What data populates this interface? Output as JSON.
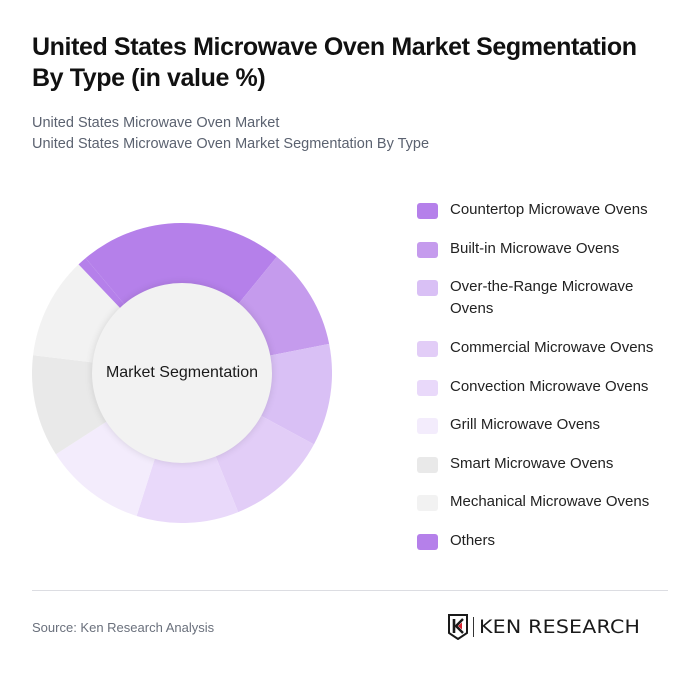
{
  "header": {
    "title": "United States Microwave Oven Market Segmentation By Type (in value %)",
    "subtitle_line1": "United States Microwave Oven Market",
    "subtitle_line2": "United States Microwave Oven Market Segmentation By Type"
  },
  "donut": {
    "center_label": "Market Segmentation"
  },
  "legend": {
    "items": [
      {
        "label": "Countertop Microwave Ovens",
        "color": "#b580ea"
      },
      {
        "label": "Built-in Microwave Ovens",
        "color": "#c59bed"
      },
      {
        "label": "Over-the-Range Microwave Ovens",
        "color": "#d9c0f5"
      },
      {
        "label": "Commercial Microwave Ovens",
        "color": "#e2cdf7"
      },
      {
        "label": "Convection Microwave Ovens",
        "color": "#e9d9fa"
      },
      {
        "label": "Grill Microwave Ovens",
        "color": "#f3ecfc"
      },
      {
        "label": "Smart Microwave Ovens",
        "color": "#e9e9e9"
      },
      {
        "label": "Mechanical Microwave Ovens",
        "color": "#f2f2f2"
      },
      {
        "label": "Others",
        "color": "#b580ea"
      }
    ]
  },
  "footer": {
    "source": "Source: Ken Research Analysis",
    "logo_text": "KEN RESEARCH"
  },
  "chart_data": {
    "type": "pie",
    "variant": "donut",
    "title": "United States Microwave Oven Market Segmentation By Type (in value %)",
    "center_label": "Market Segmentation",
    "categories": [
      "Countertop Microwave Ovens",
      "Built-in Microwave Ovens",
      "Over-the-Range Microwave Ovens",
      "Commercial Microwave Ovens",
      "Convection Microwave Ovens",
      "Grill Microwave Ovens",
      "Smart Microwave Ovens",
      "Mechanical Microwave Ovens",
      "Others"
    ],
    "values": [
      22,
      11,
      11,
      11,
      11,
      11,
      11,
      11,
      1
    ],
    "colors": [
      "#b580ea",
      "#c59bed",
      "#d9c0f5",
      "#e2cdf7",
      "#e9d9fa",
      "#f3ecfc",
      "#e9e9e9",
      "#f2f2f2",
      "#b580ea"
    ],
    "start_angle_deg": -40,
    "legend_position": "right",
    "unit": "%"
  }
}
